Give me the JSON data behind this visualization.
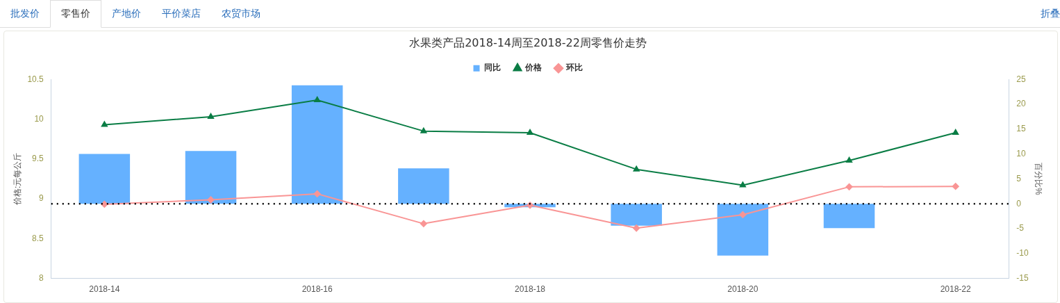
{
  "chart_data": {
    "type": "bar",
    "title": "水果类产品2018-14周至2018-22周零售价走势",
    "ylabel": "价格:元每公斤",
    "y2label": "百分比%",
    "categories": [
      "2018-14",
      null,
      "2018-16",
      null,
      "2018-18",
      null,
      "2018-20",
      null,
      "2018-22"
    ],
    "series": [
      {
        "name": "同比",
        "axis": "y2",
        "color": "#65b1ff",
        "values": [
          10.0,
          10.6,
          23.8,
          7.1,
          -0.7,
          -4.4,
          -10.4,
          -4.9,
          null
        ]
      },
      {
        "name": "价格",
        "type": "line",
        "axis": "y",
        "color": "#0a7d45",
        "marker": "triangle",
        "values": [
          9.93,
          10.03,
          10.24,
          9.85,
          9.83,
          9.37,
          9.17,
          9.48,
          9.83
        ]
      },
      {
        "name": "环比",
        "type": "line",
        "axis": "y2",
        "color": "#f99595",
        "marker": "diamond",
        "values": [
          -0.1,
          0.8,
          2.0,
          -4.0,
          -0.3,
          -4.9,
          -2.2,
          3.4,
          3.5
        ]
      }
    ],
    "ylim": [
      8,
      10.5
    ],
    "yticks": [
      8,
      8.5,
      9,
      9.5,
      10,
      10.5
    ],
    "y2lim": [
      -15,
      25
    ],
    "y2ticks": [
      -15,
      -10,
      -5,
      0,
      5,
      10,
      15,
      20,
      25
    ],
    "ref_lines": [
      {
        "axis": "y2",
        "value": 0,
        "color": "#000000",
        "line_style": "dotted"
      }
    ],
    "legend": "top",
    "grid": false,
    "annotations": [
      "批发价",
      "零售价",
      "产地价",
      "平价菜店",
      "农贸市场",
      "折叠"
    ]
  }
}
